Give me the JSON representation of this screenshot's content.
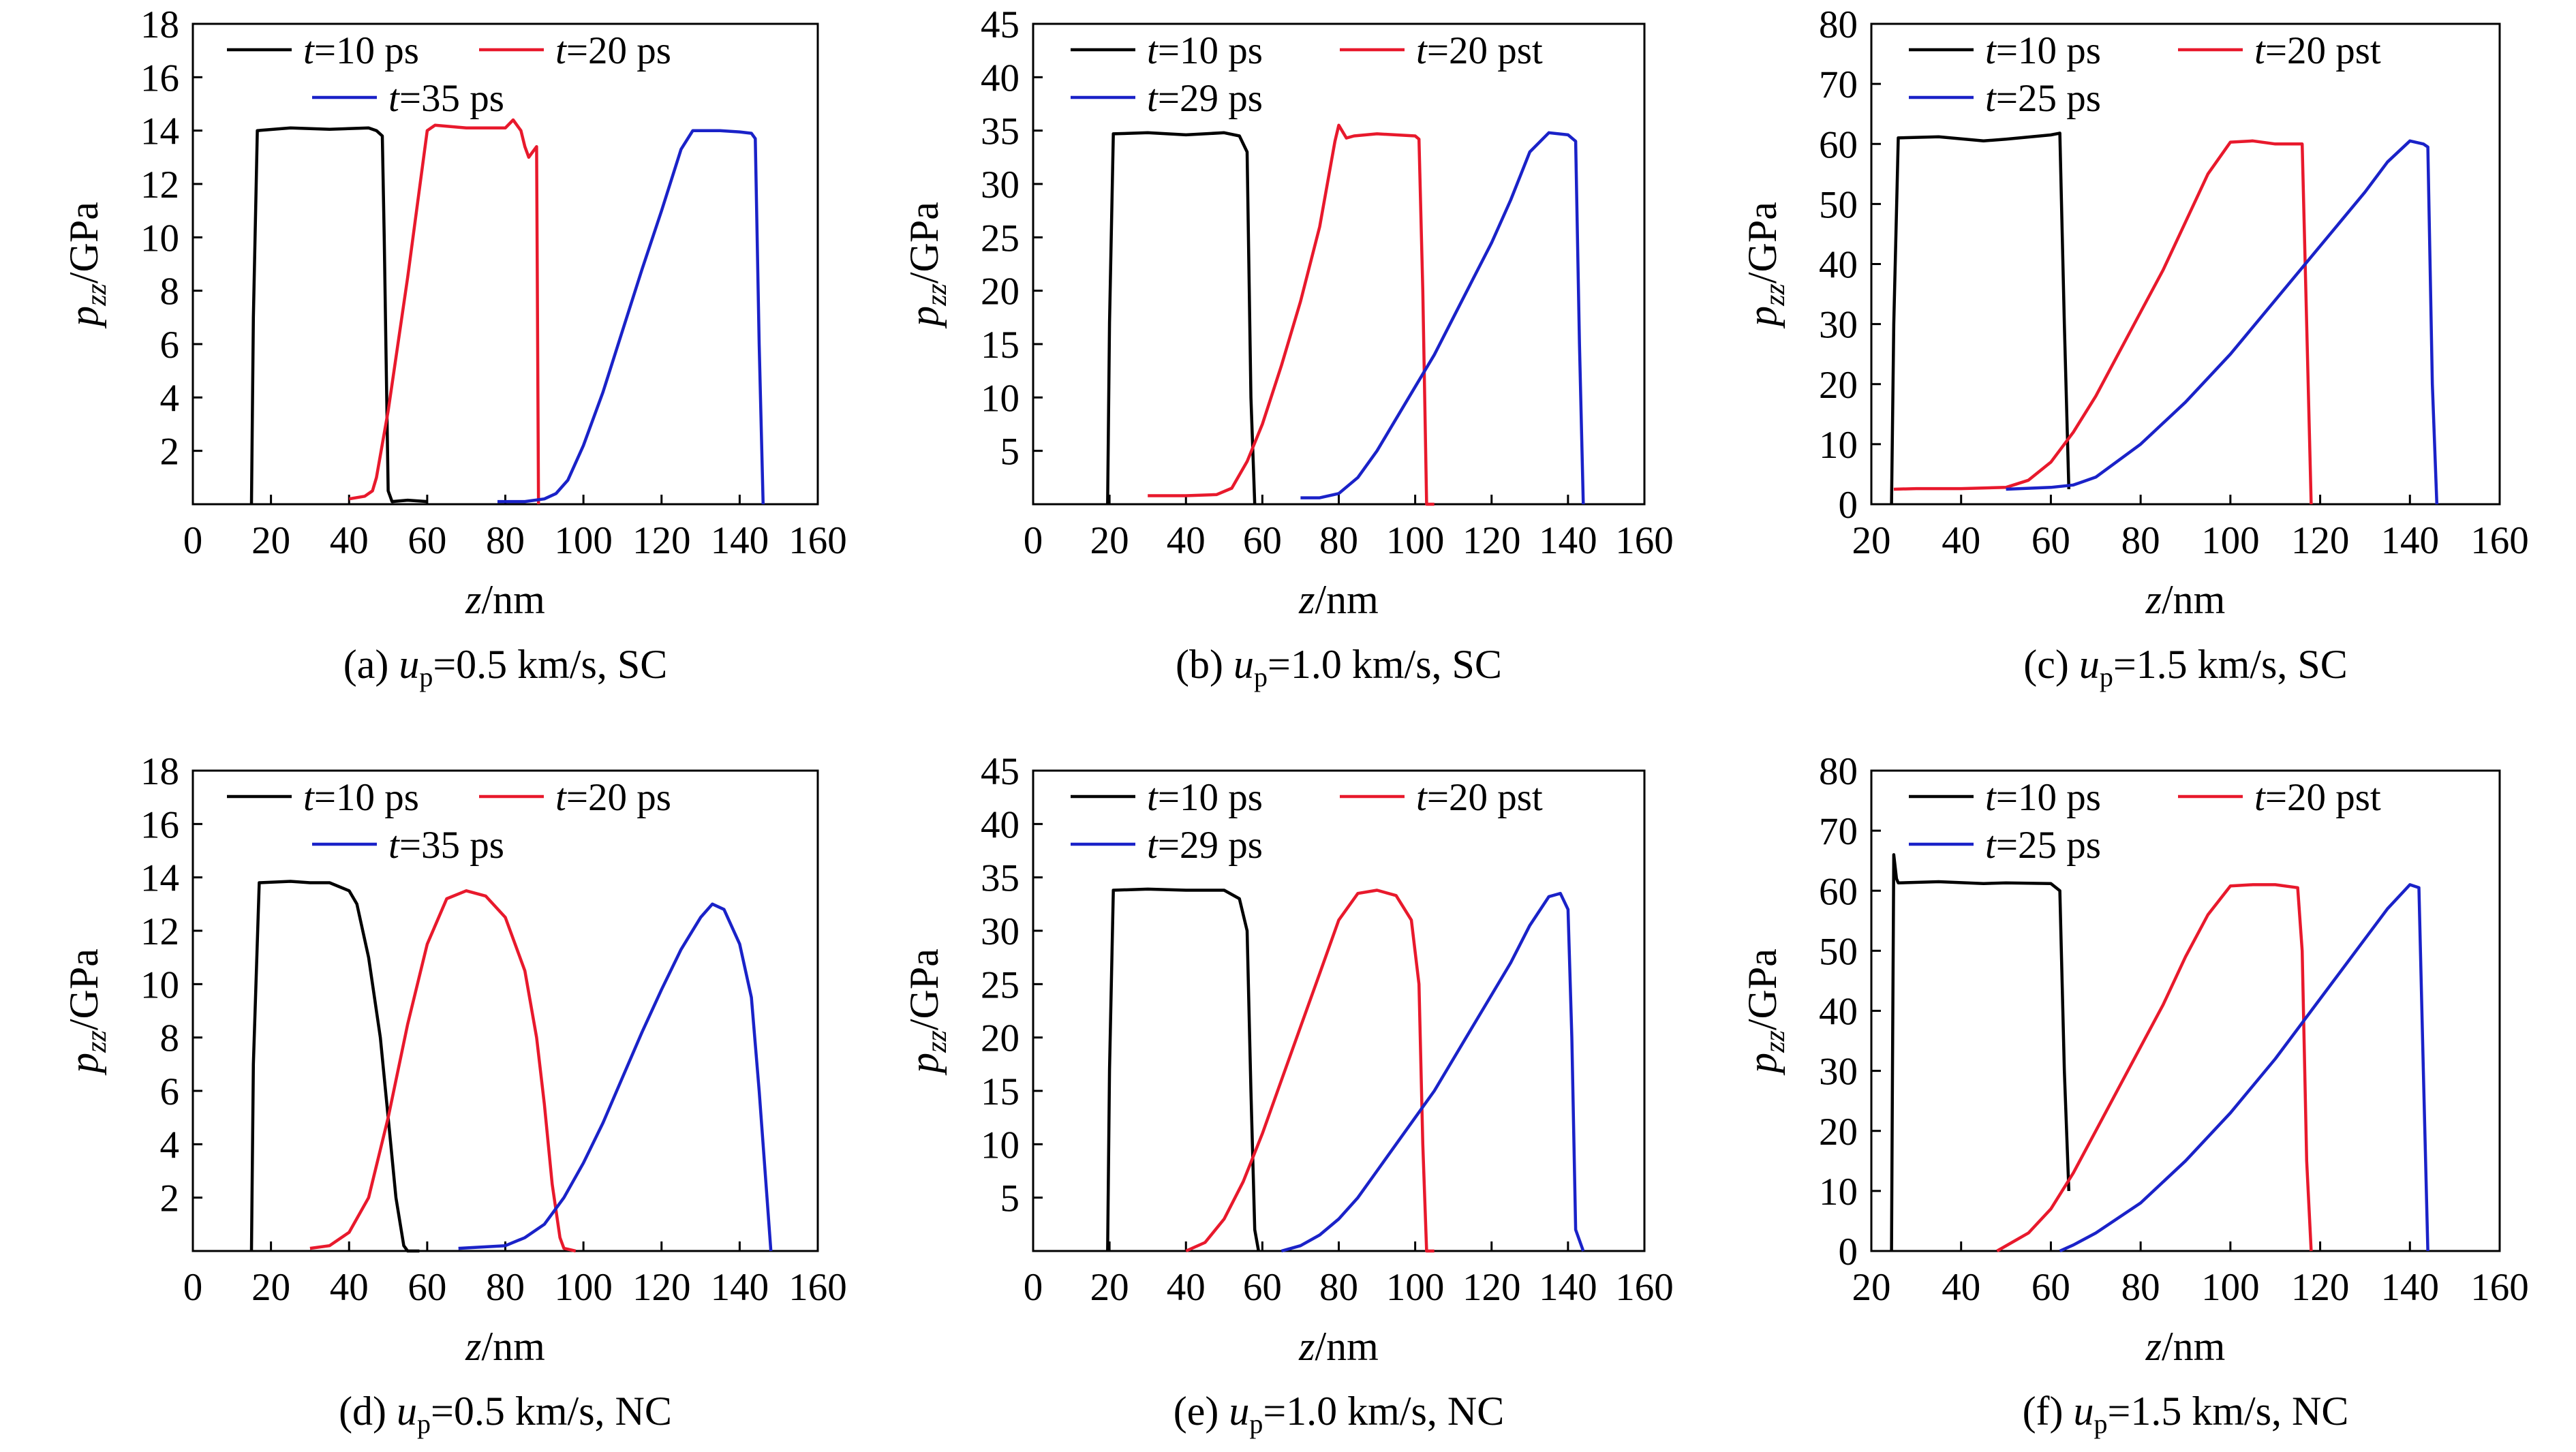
{
  "chart_data": [
    {
      "type": "line",
      "caption": {
        "prefix": "(a) ",
        "var": "u",
        "sub": "p",
        "suffix": "=0.5 km/s, SC"
      },
      "xlabel": {
        "var": "z",
        "rest": "/nm"
      },
      "ylabel": {
        "var": "p",
        "sub": "zz",
        "rest": "/GPa"
      },
      "xlim": [
        0,
        160
      ],
      "ylim": [
        0,
        18
      ],
      "xticks": [
        0,
        20,
        40,
        60,
        80,
        100,
        120,
        140,
        160
      ],
      "yticks": [
        2,
        4,
        6,
        8,
        10,
        12,
        14,
        16,
        18
      ],
      "series": [
        {
          "name": "t=10 ps",
          "var": "t",
          "rest": "=10 ps",
          "color": "#000000",
          "x": [
            15,
            15.5,
            16.5,
            25,
            35,
            45,
            47,
            48.5,
            49,
            50,
            51,
            55,
            60
          ],
          "y": [
            0,
            7,
            14.0,
            14.1,
            14.05,
            14.1,
            14.0,
            13.8,
            10,
            0.5,
            0.1,
            0.15,
            0.1
          ]
        },
        {
          "name": "t=20 ps",
          "var": "t",
          "rest": "=20 ps",
          "color": "#e8192c",
          "x": [
            40,
            44,
            46,
            47,
            50,
            55,
            60,
            62,
            70,
            80,
            82,
            84,
            85,
            86,
            87,
            88,
            88.5
          ],
          "y": [
            0.2,
            0.3,
            0.5,
            1,
            3.5,
            8.5,
            14.0,
            14.2,
            14.1,
            14.1,
            14.4,
            14.0,
            13.4,
            13.0,
            13.2,
            13.4,
            0
          ]
        },
        {
          "name": "t=35 ps",
          "var": "t",
          "rest": "=35 ps",
          "color": "#1a22c8",
          "x": [
            78,
            85,
            90,
            93,
            96,
            100,
            105,
            110,
            115,
            120,
            125,
            128,
            135,
            140,
            143,
            144,
            145,
            146
          ],
          "y": [
            0.1,
            0.1,
            0.2,
            0.4,
            0.9,
            2.2,
            4.2,
            6.5,
            8.8,
            11,
            13.3,
            14.0,
            14.0,
            13.95,
            13.9,
            13.7,
            6,
            0
          ]
        }
      ]
    },
    {
      "type": "line",
      "caption": {
        "prefix": "(b) ",
        "var": "u",
        "sub": "p",
        "suffix": "=1.0 km/s, SC"
      },
      "xlabel": {
        "var": "z",
        "rest": "/nm"
      },
      "ylabel": {
        "var": "p",
        "sub": "zz",
        "rest": "/GPa"
      },
      "xlim": [
        0,
        160
      ],
      "ylim": [
        0,
        45
      ],
      "xticks": [
        0,
        20,
        40,
        60,
        80,
        100,
        120,
        140,
        160
      ],
      "yticks": [
        5,
        10,
        15,
        20,
        25,
        30,
        35,
        40,
        45
      ],
      "series": [
        {
          "name": "t=10 ps",
          "var": "t",
          "rest": "=10 ps",
          "color": "#000000",
          "x": [
            19.5,
            20,
            21,
            30,
            40,
            50,
            54,
            56,
            57,
            58
          ],
          "y": [
            0,
            17,
            34.7,
            34.8,
            34.6,
            34.8,
            34.5,
            33,
            10,
            0
          ]
        },
        {
          "name": "t=20 pst",
          "var": "t",
          "rest": "=20 pst",
          "color": "#e8192c",
          "x": [
            30,
            40,
            48,
            52,
            56,
            60,
            65,
            70,
            75,
            79,
            80,
            82,
            84,
            90,
            100,
            101,
            102,
            103,
            105
          ],
          "y": [
            0.8,
            0.8,
            0.9,
            1.5,
            4,
            7.5,
            13,
            19,
            26,
            34,
            35.5,
            34.3,
            34.5,
            34.7,
            34.5,
            34.2,
            20,
            0,
            0
          ]
        },
        {
          "name": "t=29 ps",
          "var": "t",
          "rest": "=29 ps",
          "color": "#1a22c8",
          "x": [
            70,
            75,
            80,
            85,
            90,
            95,
            100,
            105,
            110,
            115,
            120,
            125,
            130,
            135,
            140,
            142,
            143,
            144
          ],
          "y": [
            0.6,
            0.6,
            1.0,
            2.5,
            5,
            8,
            11,
            14,
            17.5,
            21,
            24.5,
            28.5,
            33,
            34.8,
            34.6,
            34,
            15,
            0
          ]
        }
      ]
    },
    {
      "type": "line",
      "caption": {
        "prefix": "(c) ",
        "var": "u",
        "sub": "p",
        "suffix": "=1.5 km/s, SC"
      },
      "xlabel": {
        "var": "z",
        "rest": "/nm"
      },
      "ylabel": {
        "var": "p",
        "sub": "zz",
        "rest": "/GPa"
      },
      "xlim": [
        20,
        160
      ],
      "ylim": [
        0,
        80
      ],
      "xticks": [
        20,
        40,
        60,
        80,
        100,
        120,
        140,
        160
      ],
      "yticks": [
        0,
        10,
        20,
        30,
        40,
        50,
        60,
        70,
        80
      ],
      "series": [
        {
          "name": "t=10 ps",
          "var": "t",
          "rest": "=10 ps",
          "color": "#000000",
          "x": [
            24.5,
            25,
            26,
            35,
            45,
            50,
            60,
            62,
            63,
            64
          ],
          "y": [
            0,
            30,
            61,
            61.2,
            60.5,
            60.8,
            61.5,
            61.8,
            30,
            2.5
          ]
        },
        {
          "name": "t=20 pst",
          "var": "t",
          "rest": "=20 pst",
          "color": "#e8192c",
          "x": [
            25,
            30,
            40,
            50,
            55,
            60,
            65,
            70,
            75,
            80,
            85,
            90,
            95,
            100,
            105,
            110,
            116,
            117,
            118
          ],
          "y": [
            2.5,
            2.6,
            2.6,
            2.8,
            4,
            7,
            12,
            18,
            25,
            32,
            39,
            47,
            55,
            60.3,
            60.5,
            60,
            60,
            30,
            0
          ]
        },
        {
          "name": "t=25 ps",
          "var": "t",
          "rest": "=25 ps",
          "color": "#1a22c8",
          "x": [
            50,
            60,
            65,
            70,
            80,
            90,
            100,
            110,
            120,
            130,
            135,
            140,
            143,
            144,
            145,
            146
          ],
          "y": [
            2.5,
            2.8,
            3.2,
            4.5,
            10,
            17,
            25,
            34,
            43,
            52,
            57,
            60.5,
            60,
            59.5,
            20,
            0
          ]
        }
      ]
    },
    {
      "type": "line",
      "caption": {
        "prefix": "(d) ",
        "var": "u",
        "sub": "p",
        "suffix": "=0.5 km/s, NC"
      },
      "xlabel": {
        "var": "z",
        "rest": "/nm"
      },
      "ylabel": {
        "var": "p",
        "sub": "zz",
        "rest": "/GPa"
      },
      "xlim": [
        0,
        160
      ],
      "ylim": [
        0,
        18
      ],
      "xticks": [
        0,
        20,
        40,
        60,
        80,
        100,
        120,
        140,
        160
      ],
      "yticks": [
        2,
        4,
        6,
        8,
        10,
        12,
        14,
        16,
        18
      ],
      "series": [
        {
          "name": "t=10 ps",
          "var": "t",
          "rest": "=10 ps",
          "color": "#000000",
          "x": [
            15,
            15.5,
            17,
            25,
            30,
            35,
            40,
            42,
            45,
            48,
            50,
            52,
            54,
            55,
            58
          ],
          "y": [
            0,
            7,
            13.8,
            13.85,
            13.8,
            13.8,
            13.5,
            13,
            11,
            8,
            5,
            2,
            0.2,
            0,
            0
          ]
        },
        {
          "name": "t=20 ps",
          "var": "t",
          "rest": "=20 ps",
          "color": "#e8192c",
          "x": [
            30,
            35,
            40,
            45,
            50,
            55,
            60,
            65,
            70,
            75,
            80,
            85,
            88,
            90,
            92,
            94,
            95,
            98
          ],
          "y": [
            0.1,
            0.2,
            0.7,
            2,
            5,
            8.5,
            11.5,
            13.2,
            13.5,
            13.3,
            12.5,
            10.5,
            8,
            5.5,
            2.5,
            0.5,
            0.1,
            0
          ]
        },
        {
          "name": "t=35 ps",
          "var": "t",
          "rest": "=35 ps",
          "color": "#1a22c8",
          "x": [
            68,
            80,
            85,
            90,
            95,
            100,
            105,
            110,
            115,
            120,
            125,
            130,
            133,
            136,
            140,
            143,
            145,
            147,
            148
          ],
          "y": [
            0.1,
            0.2,
            0.5,
            1.0,
            2.0,
            3.3,
            4.8,
            6.5,
            8.2,
            9.8,
            11.3,
            12.5,
            13.0,
            12.8,
            11.5,
            9.5,
            6,
            2,
            0
          ]
        }
      ]
    },
    {
      "type": "line",
      "caption": {
        "prefix": "(e) ",
        "var": "u",
        "sub": "p",
        "suffix": "=1.0 km/s, NC"
      },
      "xlabel": {
        "var": "z",
        "rest": "/nm"
      },
      "ylabel": {
        "var": "p",
        "sub": "zz",
        "rest": "/GPa"
      },
      "xlim": [
        0,
        160
      ],
      "ylim": [
        0,
        45
      ],
      "xticks": [
        0,
        20,
        40,
        60,
        80,
        100,
        120,
        140,
        160
      ],
      "yticks": [
        5,
        10,
        15,
        20,
        25,
        30,
        35,
        40,
        45
      ],
      "series": [
        {
          "name": "t=10 ps",
          "var": "t",
          "rest": "=10 ps",
          "color": "#000000",
          "x": [
            19.5,
            20,
            21,
            30,
            40,
            50,
            54,
            56,
            57,
            58,
            59
          ],
          "y": [
            0,
            17,
            33.8,
            33.9,
            33.8,
            33.8,
            33.0,
            30,
            15,
            2,
            0
          ]
        },
        {
          "name": "t=20 pst",
          "var": "t",
          "rest": "=20 pst",
          "color": "#e8192c",
          "x": [
            40,
            45,
            50,
            55,
            60,
            65,
            70,
            75,
            80,
            85,
            90,
            95,
            99,
            101,
            102,
            103,
            105
          ],
          "y": [
            0,
            0.8,
            3,
            6.5,
            11,
            16,
            21,
            26,
            31,
            33.5,
            33.8,
            33.3,
            31,
            25,
            10,
            0,
            0
          ]
        },
        {
          "name": "t=29 ps",
          "var": "t",
          "rest": "=29 ps",
          "color": "#1a22c8",
          "x": [
            65,
            70,
            75,
            80,
            85,
            90,
            95,
            100,
            105,
            110,
            115,
            120,
            125,
            130,
            135,
            138,
            140,
            141,
            142,
            144
          ],
          "y": [
            0,
            0.5,
            1.5,
            3,
            5,
            7.5,
            10,
            12.5,
            15,
            18,
            21,
            24,
            27,
            30.5,
            33.2,
            33.5,
            32,
            20,
            2,
            0
          ]
        }
      ]
    },
    {
      "type": "line",
      "caption": {
        "prefix": "(f) ",
        "var": "u",
        "sub": "p",
        "suffix": "=1.5 km/s, NC"
      },
      "xlabel": {
        "var": "z",
        "rest": "/nm"
      },
      "ylabel": {
        "var": "p",
        "sub": "zz",
        "rest": "/GPa"
      },
      "xlim": [
        20,
        160
      ],
      "ylim": [
        0,
        80
      ],
      "xticks": [
        20,
        40,
        60,
        80,
        100,
        120,
        140,
        160
      ],
      "yticks": [
        0,
        10,
        20,
        30,
        40,
        50,
        60,
        70,
        80
      ],
      "series": [
        {
          "name": "t=10 ps",
          "var": "t",
          "rest": "=10 ps",
          "color": "#000000",
          "x": [
            24.5,
            24.7,
            25,
            25.6,
            26,
            35,
            45,
            50,
            60,
            62,
            63,
            64
          ],
          "y": [
            0,
            30,
            66,
            62,
            61.3,
            61.5,
            61.2,
            61.3,
            61.2,
            60,
            30,
            10
          ]
        },
        {
          "name": "t=20 pst",
          "var": "t",
          "rest": "=20 pst",
          "color": "#e8192c",
          "x": [
            48,
            55,
            60,
            65,
            70,
            75,
            80,
            85,
            90,
            95,
            100,
            105,
            110,
            115,
            116,
            117,
            118
          ],
          "y": [
            0,
            3,
            7,
            13,
            20,
            27,
            34,
            41,
            49,
            56,
            60.8,
            61,
            61,
            60.5,
            50,
            15,
            0
          ]
        },
        {
          "name": "t=25 ps",
          "var": "t",
          "rest": "=25 ps",
          "color": "#1a22c8",
          "x": [
            62,
            65,
            70,
            80,
            90,
            100,
            110,
            120,
            130,
            135,
            140,
            142,
            143,
            144
          ],
          "y": [
            0,
            1,
            3,
            8,
            15,
            23,
            32,
            42,
            52,
            57,
            61,
            60.5,
            30,
            0
          ]
        }
      ]
    }
  ]
}
